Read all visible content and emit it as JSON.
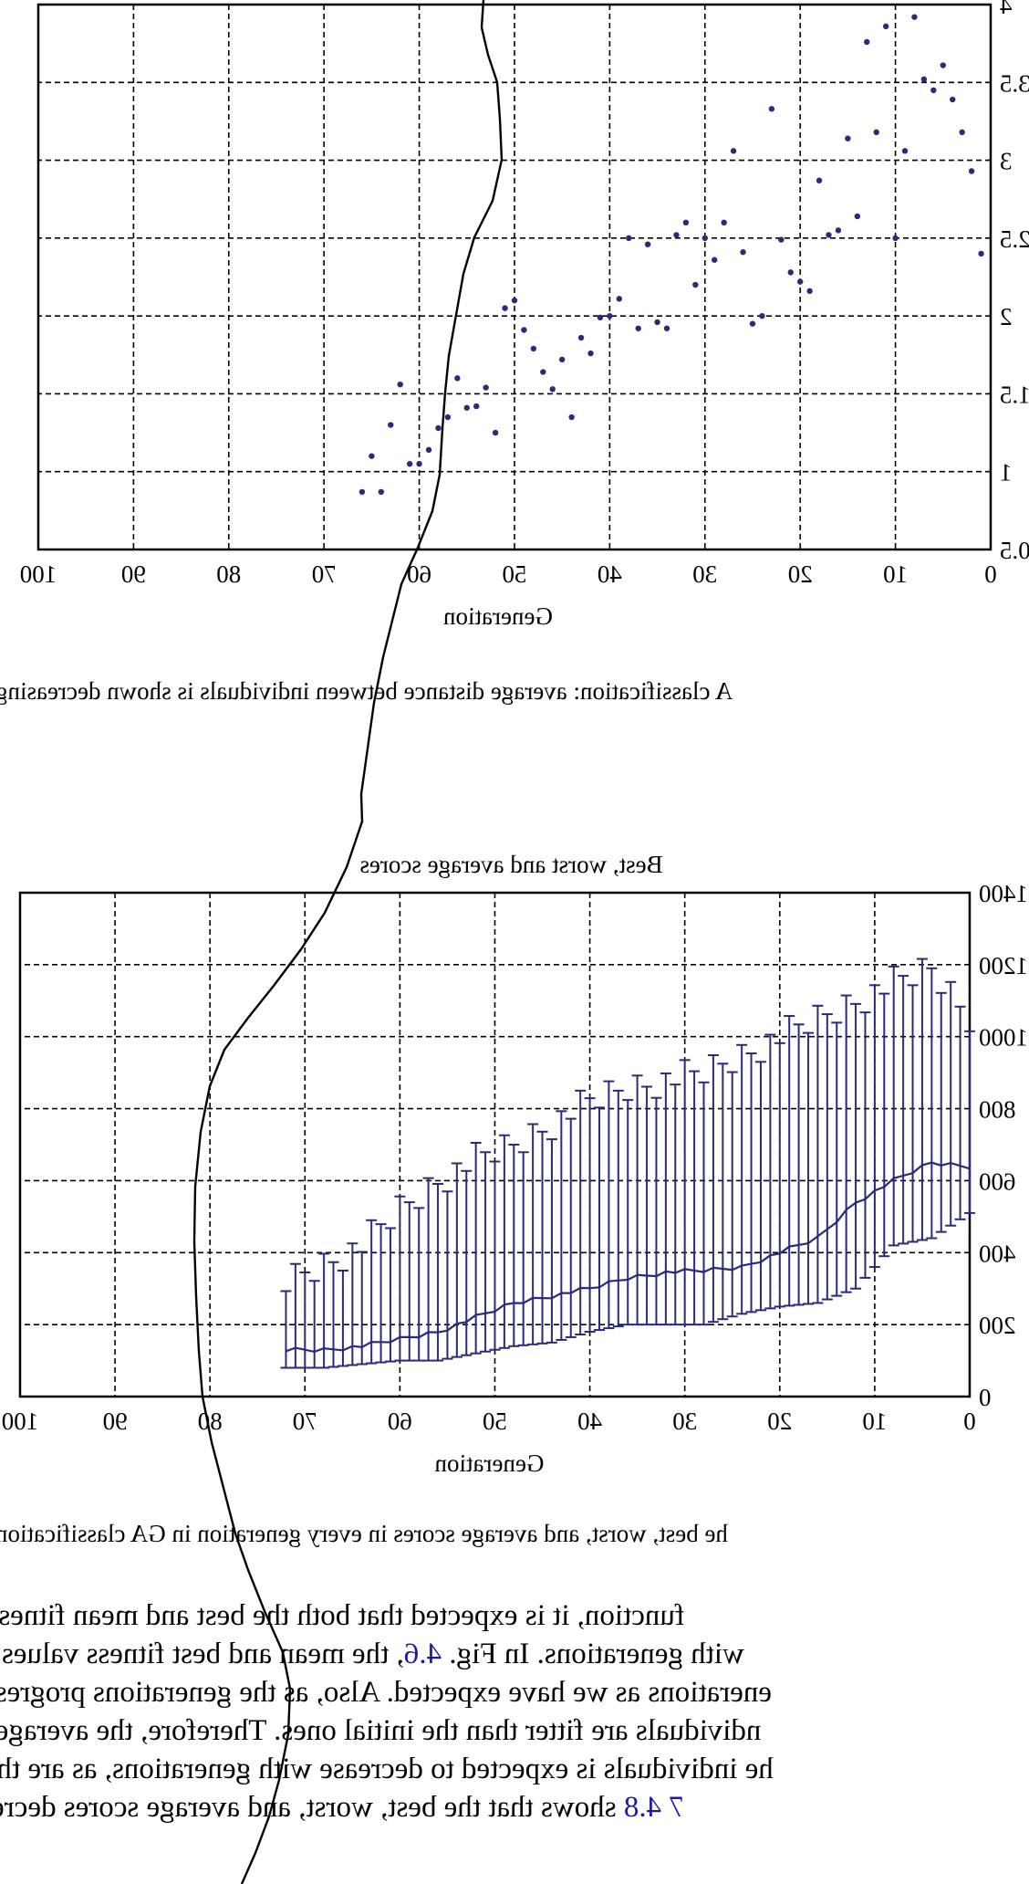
{
  "chart_data": [
    {
      "type": "scatter",
      "title": "",
      "xlabel": "Generation",
      "ylabel": "",
      "xlim": [
        0,
        100
      ],
      "ylim": [
        0.5,
        4
      ],
      "xticks": [
        "0",
        "10",
        "20",
        "30",
        "40",
        "50",
        "60",
        "70",
        "80",
        "90",
        "100"
      ],
      "yticks": [
        "0.5",
        "1",
        "1.5",
        "2",
        "2.5",
        "3",
        "3.5",
        "4"
      ],
      "grid": true,
      "series": [
        {
          "color": "#2a2a7a",
          "points": [
            [
              1,
              2.4
            ],
            [
              2,
              2.93
            ],
            [
              3,
              3.18
            ],
            [
              4,
              3.39
            ],
            [
              5,
              3.61
            ],
            [
              6,
              3.45
            ],
            [
              7,
              3.52
            ],
            [
              8,
              3.92
            ],
            [
              9,
              3.06
            ],
            [
              10,
              2.5
            ],
            [
              11,
              3.86
            ],
            [
              12,
              3.18
            ],
            [
              13,
              3.76
            ],
            [
              14,
              2.64
            ],
            [
              15,
              3.14
            ],
            [
              16,
              2.55
            ],
            [
              17,
              2.52
            ],
            [
              18,
              2.87
            ],
            [
              19,
              2.16
            ],
            [
              20,
              2.22
            ],
            [
              21,
              2.28
            ],
            [
              22,
              2.49
            ],
            [
              23,
              3.33
            ],
            [
              24,
              2.0
            ],
            [
              25,
              1.95
            ],
            [
              26,
              2.41
            ],
            [
              27,
              3.06
            ],
            [
              28,
              2.6
            ],
            [
              29,
              2.36
            ],
            [
              30,
              2.5
            ],
            [
              31,
              2.2
            ],
            [
              32,
              2.6
            ],
            [
              33,
              2.52
            ],
            [
              34,
              1.92
            ],
            [
              35,
              1.96
            ],
            [
              36,
              2.46
            ],
            [
              37,
              1.92
            ],
            [
              38,
              2.5
            ],
            [
              39,
              2.11
            ],
            [
              40,
              2.0
            ],
            [
              41,
              1.99
            ],
            [
              42,
              1.76
            ],
            [
              43,
              1.86
            ],
            [
              44,
              1.35
            ],
            [
              45,
              1.72
            ],
            [
              46,
              1.53
            ],
            [
              47,
              1.64
            ],
            [
              48,
              1.79
            ],
            [
              49,
              1.91
            ],
            [
              50,
              2.1
            ],
            [
              51,
              2.05
            ],
            [
              52,
              1.25
            ],
            [
              53,
              1.54
            ],
            [
              54,
              1.42
            ],
            [
              55,
              1.41
            ],
            [
              56,
              1.6
            ],
            [
              57,
              1.35
            ],
            [
              58,
              1.28
            ],
            [
              59,
              1.14
            ],
            [
              60,
              1.05
            ],
            [
              61,
              1.05
            ],
            [
              62,
              1.56
            ],
            [
              63,
              1.3
            ],
            [
              64,
              0.87
            ],
            [
              65,
              1.1
            ],
            [
              66,
              0.87
            ]
          ]
        }
      ]
    },
    {
      "type": "line",
      "title": "Best, worst and average scores",
      "xlabel": "Generation",
      "ylabel": "",
      "xlim": [
        0,
        100
      ],
      "ylim": [
        0,
        1400
      ],
      "xticks": [
        "0",
        "10",
        "20",
        "30",
        "40",
        "50",
        "60",
        "70",
        "80",
        "90",
        "100"
      ],
      "yticks": [
        "0",
        "200",
        "400",
        "600",
        "800",
        "1000",
        "1200",
        "1400"
      ],
      "grid": true,
      "series": [
        {
          "name": "",
          "color": "#2a2a7a",
          "kind": "average-with-errorbars",
          "x": [
            0,
            4,
            8,
            12,
            16,
            20,
            24,
            28,
            32,
            36,
            40,
            44,
            48,
            52,
            56,
            60,
            64,
            68,
            72
          ],
          "average": [
            640,
            650,
            600,
            540,
            440,
            400,
            360,
            350,
            345,
            330,
            300,
            280,
            260,
            220,
            180,
            160,
            140,
            130,
            130
          ],
          "best": [
            510,
            440,
            420,
            300,
            260,
            250,
            230,
            200,
            200,
            200,
            180,
            150,
            140,
            120,
            100,
            100,
            90,
            80,
            80
          ],
          "worst": [
            1060,
            1190,
            1150,
            1100,
            1050,
            1000,
            950,
            900,
            880,
            860,
            820,
            760,
            700,
            660,
            600,
            520,
            420,
            370,
            320
          ]
        }
      ]
    }
  ],
  "captions": {
    "figure_top": "A classification: average distance between individuals is shown decreasing",
    "figure_bottom": "he best, worst, and average scores in every generation in GA classification"
  },
  "body": {
    "l1": "function, it is expected that both the best and mean fitness sh",
    "l2a": "with generations. In Fig. ",
    "l2ref": "4.6",
    "l2b": ", the mean and best fitness values dec",
    "l3": "enerations as we have expected. Also, as the generations progress in",
    "l4": "ndividuals are fitter than the initial ones. Therefore, the average dis",
    "l5": "he individuals is expected to decrease with generations, as are the re",
    "l6ref": "7 4.8",
    "l6b": " shows that the best, worst, and average scores decrease"
  }
}
